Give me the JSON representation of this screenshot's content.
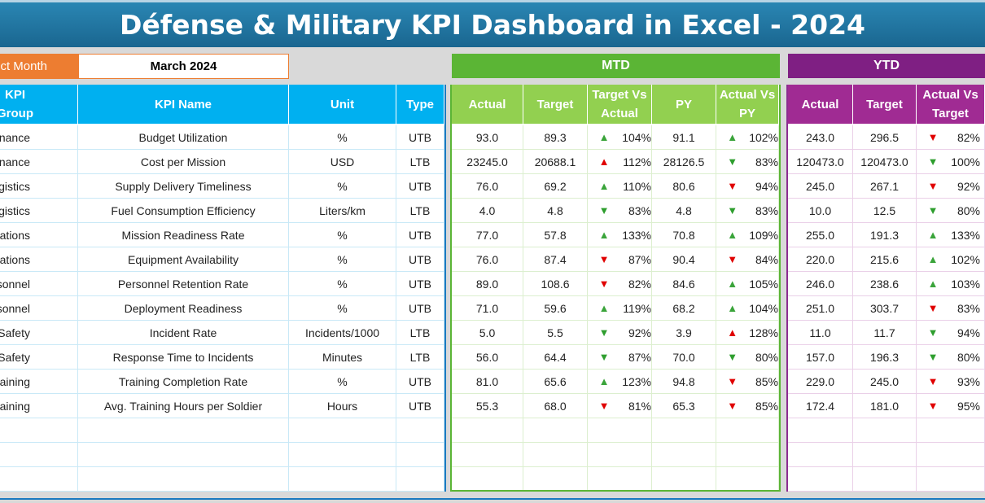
{
  "title": "Défense & Military KPI Dashboard in Excel - 2024",
  "selector": {
    "label": "Select Month",
    "value": "March 2024"
  },
  "sections": {
    "mtd": "MTD",
    "ytd": "YTD"
  },
  "colors": {
    "title": "#1f7aa6",
    "select_label": "#ed7d31",
    "mtd": "#5bb535",
    "ytd": "#7f1f83",
    "up_arrow": "#3aa43a",
    "down_arrow_red": "#e00000",
    "down_arrow_green": "#2e9e2e"
  },
  "headers": {
    "left": [
      "KPI Group",
      "KPI Name",
      "Unit",
      "Type"
    ],
    "mtd": [
      "Actual",
      "Target",
      "Target Vs Actual",
      "PY",
      "Actual Vs PY"
    ],
    "ytd": [
      "Actual",
      "Target",
      "Actual Vs Target"
    ]
  },
  "rows": [
    {
      "group": "Finance",
      "kpi": "Budget Utilization",
      "unit": "%",
      "type": "UTB",
      "mtd_actual": "93.0",
      "mtd_target": "89.3",
      "mtd_tva_icon": "arrow-up-green",
      "mtd_tva": "104%",
      "py": "91.1",
      "avp_icon": "arrow-up-green",
      "avp": "102%",
      "ytd_actual": "243.0",
      "ytd_target": "296.5",
      "ytd_avt_icon": "arrow-down-red",
      "ytd_avt": "82%"
    },
    {
      "group": "Finance",
      "kpi": "Cost per Mission",
      "unit": "USD",
      "type": "LTB",
      "mtd_actual": "23245.0",
      "mtd_target": "20688.1",
      "mtd_tva_icon": "arrow-up-red",
      "mtd_tva": "112%",
      "py": "28126.5",
      "avp_icon": "arrow-down-green",
      "avp": "83%",
      "ytd_actual": "120473.0",
      "ytd_target": "120473.0",
      "ytd_avt_icon": "arrow-down-green",
      "ytd_avt": "100%"
    },
    {
      "group": "Logistics",
      "kpi": "Supply Delivery Timeliness",
      "unit": "%",
      "type": "UTB",
      "mtd_actual": "76.0",
      "mtd_target": "69.2",
      "mtd_tva_icon": "arrow-up-green",
      "mtd_tva": "110%",
      "py": "80.6",
      "avp_icon": "arrow-down-red",
      "avp": "94%",
      "ytd_actual": "245.0",
      "ytd_target": "267.1",
      "ytd_avt_icon": "arrow-down-red",
      "ytd_avt": "92%"
    },
    {
      "group": "Logistics",
      "kpi": "Fuel Consumption Efficiency",
      "unit": "Liters/km",
      "type": "LTB",
      "mtd_actual": "4.0",
      "mtd_target": "4.8",
      "mtd_tva_icon": "arrow-down-green",
      "mtd_tva": "83%",
      "py": "4.8",
      "avp_icon": "arrow-down-green",
      "avp": "83%",
      "ytd_actual": "10.0",
      "ytd_target": "12.5",
      "ytd_avt_icon": "arrow-down-green",
      "ytd_avt": "80%"
    },
    {
      "group": "Operations",
      "kpi": "Mission Readiness Rate",
      "unit": "%",
      "type": "UTB",
      "mtd_actual": "77.0",
      "mtd_target": "57.8",
      "mtd_tva_icon": "arrow-up-green",
      "mtd_tva": "133%",
      "py": "70.8",
      "avp_icon": "arrow-up-green",
      "avp": "109%",
      "ytd_actual": "255.0",
      "ytd_target": "191.3",
      "ytd_avt_icon": "arrow-up-green",
      "ytd_avt": "133%"
    },
    {
      "group": "Operations",
      "kpi": "Equipment Availability",
      "unit": "%",
      "type": "UTB",
      "mtd_actual": "76.0",
      "mtd_target": "87.4",
      "mtd_tva_icon": "arrow-down-red",
      "mtd_tva": "87%",
      "py": "90.4",
      "avp_icon": "arrow-down-red",
      "avp": "84%",
      "ytd_actual": "220.0",
      "ytd_target": "215.6",
      "ytd_avt_icon": "arrow-up-green",
      "ytd_avt": "102%"
    },
    {
      "group": "Personnel",
      "kpi": "Personnel Retention Rate",
      "unit": "%",
      "type": "UTB",
      "mtd_actual": "89.0",
      "mtd_target": "108.6",
      "mtd_tva_icon": "arrow-down-red",
      "mtd_tva": "82%",
      "py": "84.6",
      "avp_icon": "arrow-up-green",
      "avp": "105%",
      "ytd_actual": "246.0",
      "ytd_target": "238.6",
      "ytd_avt_icon": "arrow-up-green",
      "ytd_avt": "103%"
    },
    {
      "group": "Personnel",
      "kpi": "Deployment Readiness",
      "unit": "%",
      "type": "UTB",
      "mtd_actual": "71.0",
      "mtd_target": "59.6",
      "mtd_tva_icon": "arrow-up-green",
      "mtd_tva": "119%",
      "py": "68.2",
      "avp_icon": "arrow-up-green",
      "avp": "104%",
      "ytd_actual": "251.0",
      "ytd_target": "303.7",
      "ytd_avt_icon": "arrow-down-red",
      "ytd_avt": "83%"
    },
    {
      "group": "Safety",
      "kpi": "Incident Rate",
      "unit": "Incidents/1000",
      "type": "LTB",
      "mtd_actual": "5.0",
      "mtd_target": "5.5",
      "mtd_tva_icon": "arrow-down-green",
      "mtd_tva": "92%",
      "py": "3.9",
      "avp_icon": "arrow-up-red",
      "avp": "128%",
      "ytd_actual": "11.0",
      "ytd_target": "11.7",
      "ytd_avt_icon": "arrow-down-green",
      "ytd_avt": "94%"
    },
    {
      "group": "Safety",
      "kpi": "Response Time to Incidents",
      "unit": "Minutes",
      "type": "LTB",
      "mtd_actual": "56.0",
      "mtd_target": "64.4",
      "mtd_tva_icon": "arrow-down-green",
      "mtd_tva": "87%",
      "py": "70.0",
      "avp_icon": "arrow-down-green",
      "avp": "80%",
      "ytd_actual": "157.0",
      "ytd_target": "196.3",
      "ytd_avt_icon": "arrow-down-green",
      "ytd_avt": "80%"
    },
    {
      "group": "Training",
      "kpi": "Training Completion Rate",
      "unit": "%",
      "type": "UTB",
      "mtd_actual": "81.0",
      "mtd_target": "65.6",
      "mtd_tva_icon": "arrow-up-green",
      "mtd_tva": "123%",
      "py": "94.8",
      "avp_icon": "arrow-down-red",
      "avp": "85%",
      "ytd_actual": "229.0",
      "ytd_target": "245.0",
      "ytd_avt_icon": "arrow-down-red",
      "ytd_avt": "93%"
    },
    {
      "group": "Training",
      "kpi": "Avg. Training Hours per Soldier",
      "unit": "Hours",
      "type": "UTB",
      "mtd_actual": "55.3",
      "mtd_target": "68.0",
      "mtd_tva_icon": "arrow-down-red",
      "mtd_tva": "81%",
      "py": "65.3",
      "avp_icon": "arrow-down-red",
      "avp": "85%",
      "ytd_actual": "172.4",
      "ytd_target": "181.0",
      "ytd_avt_icon": "arrow-down-red",
      "ytd_avt": "95%"
    }
  ]
}
